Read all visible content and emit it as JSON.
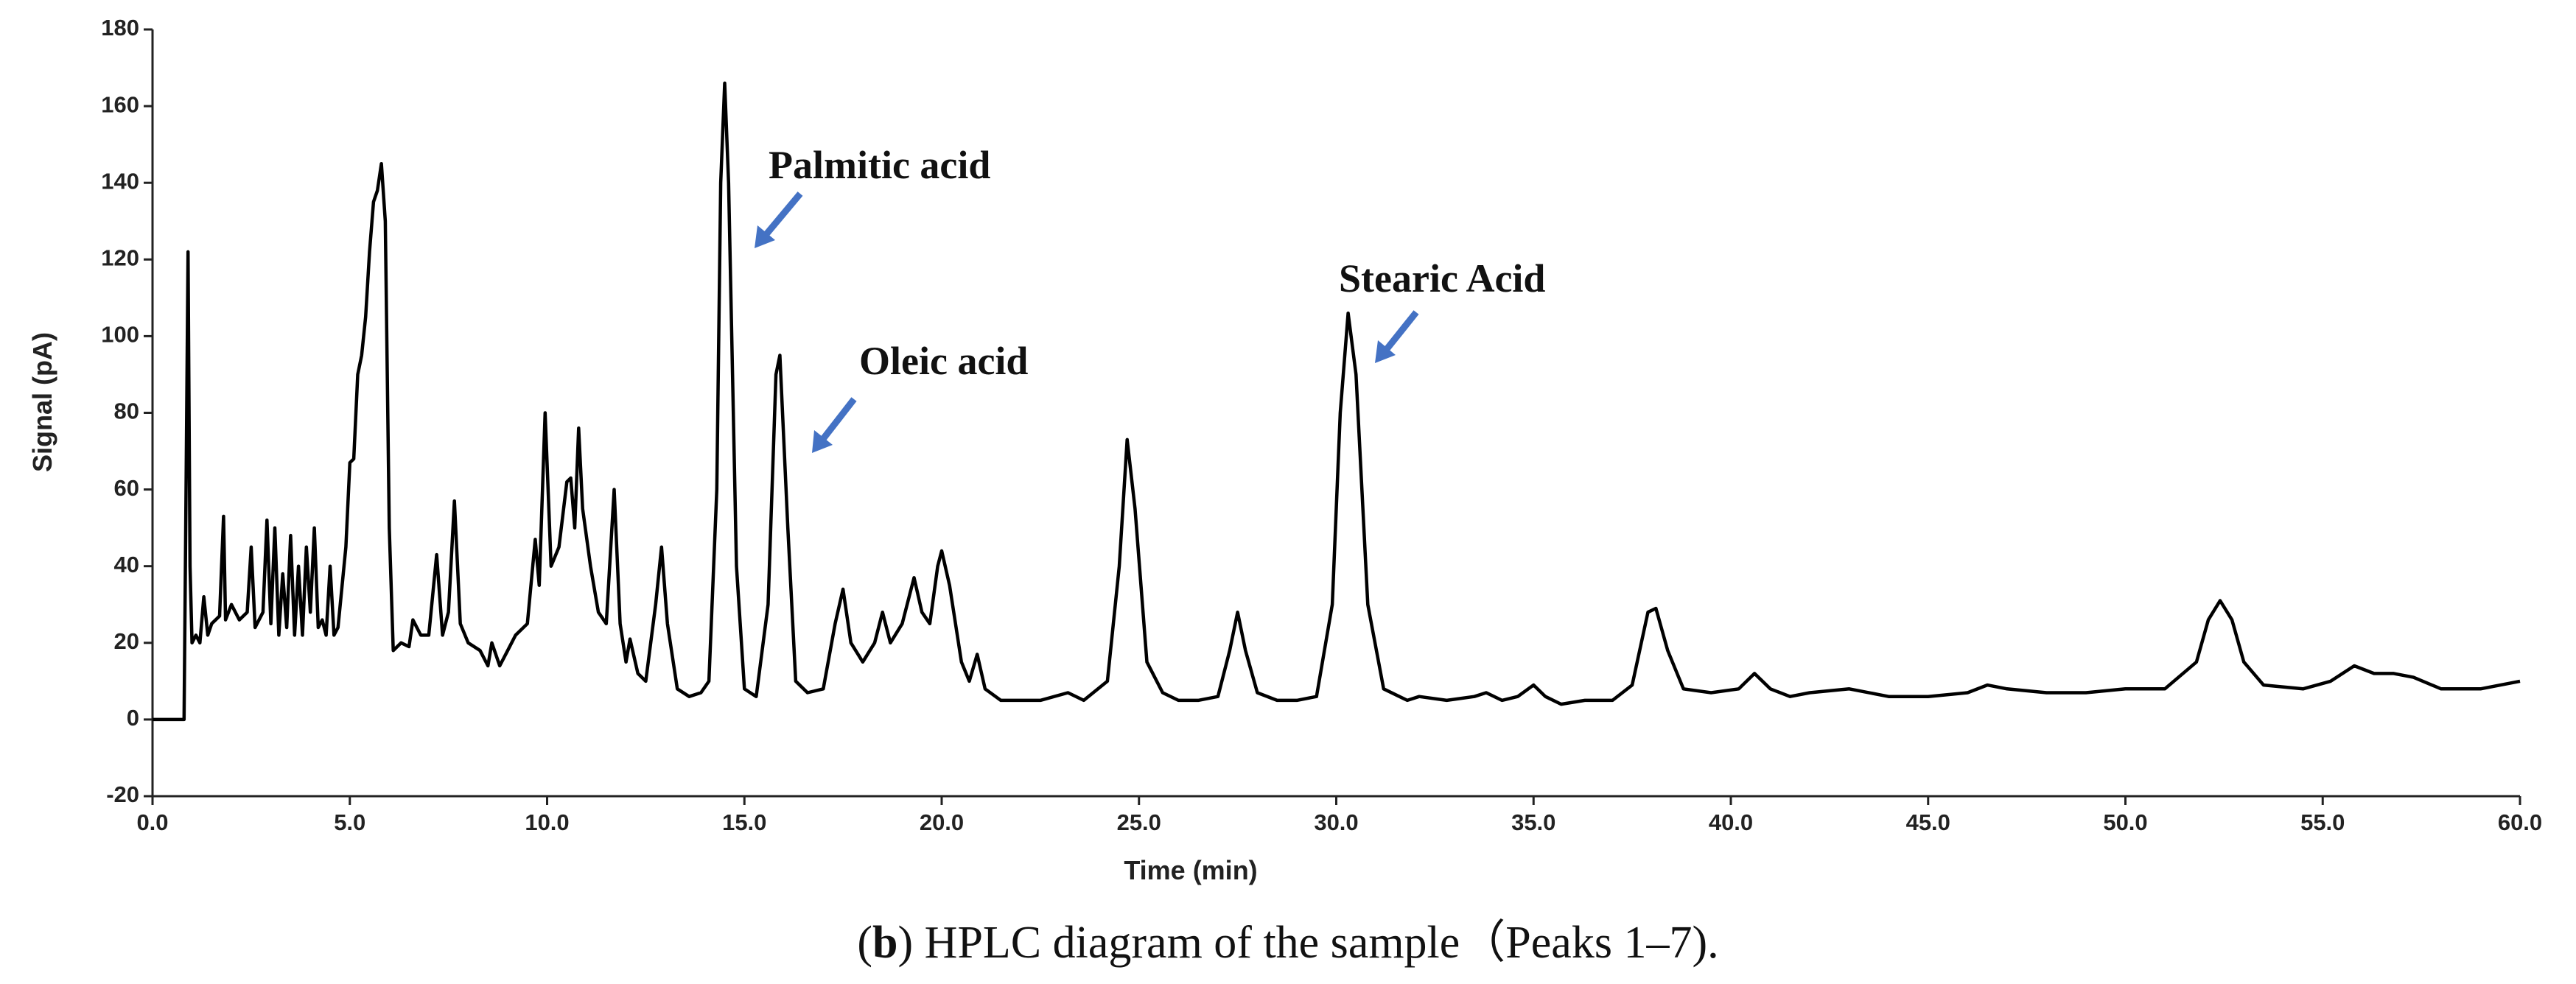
{
  "chart_data": {
    "type": "line",
    "xlabel": "Time (min)",
    "ylabel": "Signal (pA)",
    "annotations": [
      "Palmitic acid",
      "Oleic acid",
      "Stearic Acid"
    ],
    "caption_parts": [
      "(",
      "b",
      ") HPLC diagram of the sample（Peaks 1–7)."
    ],
    "xlim": [
      0,
      60
    ],
    "ylim": [
      -20,
      180
    ],
    "xticks": [
      {
        "value": 0,
        "label": "0.0"
      },
      {
        "value": 5,
        "label": "5.0"
      },
      {
        "value": 10,
        "label": "10.0"
      },
      {
        "value": 15,
        "label": "15.0"
      },
      {
        "value": 20,
        "label": "20.0"
      },
      {
        "value": 25,
        "label": "25.0"
      },
      {
        "value": 30,
        "label": "30.0"
      },
      {
        "value": 35,
        "label": "35.0"
      },
      {
        "value": 40,
        "label": "40.0"
      },
      {
        "value": 45,
        "label": "45.0"
      },
      {
        "value": 50,
        "label": "50.0"
      },
      {
        "value": 55,
        "label": "55.0"
      },
      {
        "value": 60,
        "label": "60.0"
      }
    ],
    "yticks": [
      -20,
      0,
      20,
      40,
      60,
      80,
      100,
      120,
      140,
      160,
      180
    ],
    "color": "#000000",
    "x": [
      0,
      0.8,
      0.85,
      0.9,
      0.95,
      1.0,
      1.1,
      1.2,
      1.3,
      1.4,
      1.5,
      1.7,
      1.8,
      1.85,
      2.0,
      2.2,
      2.4,
      2.5,
      2.6,
      2.8,
      2.9,
      3.0,
      3.1,
      3.2,
      3.3,
      3.4,
      3.5,
      3.6,
      3.7,
      3.8,
      3.9,
      4.0,
      4.1,
      4.2,
      4.3,
      4.4,
      4.5,
      4.6,
      4.7,
      4.9,
      5.0,
      5.1,
      5.2,
      5.3,
      5.4,
      5.5,
      5.6,
      5.7,
      5.8,
      5.9,
      6.0,
      6.1,
      6.3,
      6.5,
      6.6,
      6.8,
      7.0,
      7.2,
      7.35,
      7.5,
      7.65,
      7.8,
      8.0,
      8.3,
      8.5,
      8.6,
      8.8,
      9.0,
      9.2,
      9.5,
      9.7,
      9.8,
      9.95,
      10.1,
      10.3,
      10.5,
      10.6,
      10.7,
      10.8,
      10.9,
      11.1,
      11.3,
      11.5,
      11.7,
      11.85,
      12.0,
      12.1,
      12.3,
      12.5,
      12.75,
      12.9,
      13.05,
      13.3,
      13.6,
      13.9,
      14.1,
      14.3,
      14.4,
      14.5,
      14.6,
      14.8,
      15.0,
      15.3,
      15.6,
      15.8,
      15.9,
      16.1,
      16.3,
      16.6,
      17.0,
      17.3,
      17.5,
      17.7,
      18.0,
      18.3,
      18.5,
      18.7,
      19.0,
      19.3,
      19.5,
      19.7,
      19.9,
      20.0,
      20.2,
      20.5,
      20.7,
      20.9,
      21.1,
      21.5,
      22.5,
      23.2,
      23.6,
      24.2,
      24.5,
      24.7,
      24.9,
      25.2,
      25.6,
      26.0,
      26.5,
      27.0,
      27.3,
      27.5,
      27.7,
      28.0,
      28.5,
      29.0,
      29.5,
      29.9,
      30.1,
      30.3,
      30.5,
      30.8,
      31.2,
      31.8,
      32.1,
      32.8,
      33.5,
      33.8,
      34.2,
      34.6,
      35.0,
      35.3,
      35.7,
      36.3,
      37.0,
      37.5,
      37.9,
      38.1,
      38.4,
      38.8,
      39.5,
      40.2,
      40.6,
      41.0,
      41.5,
      42.0,
      43.0,
      44.0,
      45.0,
      46.0,
      46.5,
      47.0,
      48.0,
      49.0,
      50.0,
      51.0,
      51.8,
      52.1,
      52.4,
      52.7,
      53.0,
      53.5,
      54.5,
      55.2,
      55.8,
      56.3,
      56.8,
      57.3,
      58.0,
      59.0,
      60.0
    ],
    "values": [
      0,
      0,
      60,
      122,
      40,
      20,
      22,
      20,
      32,
      22,
      25,
      27,
      53,
      26,
      30,
      26,
      28,
      45,
      24,
      28,
      52,
      25,
      50,
      22,
      38,
      24,
      48,
      22,
      40,
      22,
      45,
      28,
      50,
      24,
      26,
      22,
      40,
      22,
      24,
      45,
      67,
      68,
      90,
      95,
      105,
      122,
      135,
      138,
      145,
      130,
      50,
      18,
      20,
      19,
      26,
      22,
      22,
      43,
      22,
      28,
      57,
      25,
      20,
      18,
      14,
      20,
      14,
      18,
      22,
      25,
      47,
      35,
      80,
      40,
      45,
      62,
      63,
      50,
      76,
      55,
      40,
      28,
      25,
      60,
      25,
      15,
      21,
      12,
      10,
      30,
      45,
      25,
      8,
      6,
      7,
      10,
      60,
      140,
      166,
      140,
      40,
      8,
      6,
      30,
      90,
      95,
      50,
      10,
      7,
      8,
      25,
      34,
      20,
      15,
      20,
      28,
      20,
      25,
      37,
      28,
      25,
      40,
      44,
      35,
      15,
      10,
      17,
      8,
      5,
      5,
      7,
      5,
      10,
      40,
      73,
      55,
      15,
      7,
      5,
      5,
      6,
      18,
      28,
      18,
      7,
      5,
      5,
      6,
      30,
      80,
      106,
      90,
      30,
      8,
      5,
      6,
      5,
      6,
      7,
      5,
      6,
      9,
      6,
      4,
      5,
      5,
      9,
      28,
      29,
      18,
      8,
      7,
      8,
      12,
      8,
      6,
      7,
      8,
      6,
      6,
      7,
      9,
      8,
      7,
      7,
      8,
      8,
      15,
      26,
      31,
      26,
      15,
      9,
      8,
      10,
      14,
      12,
      12,
      11,
      8,
      8,
      10
    ]
  }
}
